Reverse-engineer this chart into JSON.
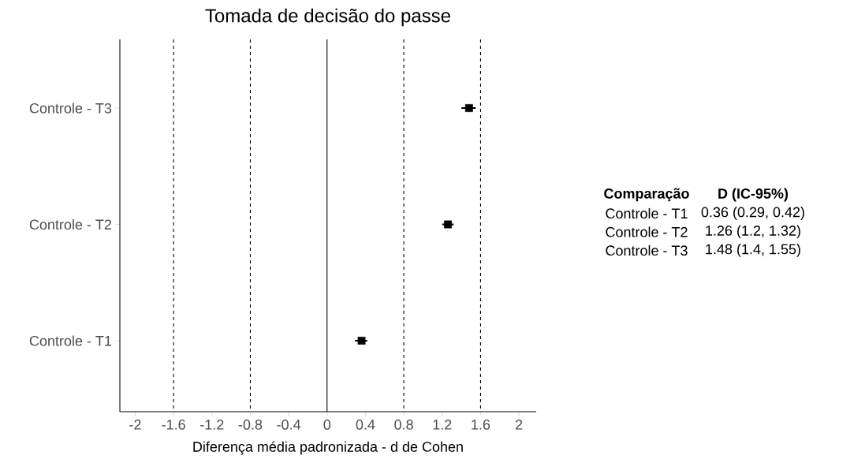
{
  "chart_data": {
    "type": "scatter",
    "orientation": "horizontal",
    "title": "Tomada de decisão do passe",
    "xlabel": "Diferença média padronizada - d de Cohen",
    "categories": [
      "Controle - T3",
      "Controle - T2",
      "Controle - T1"
    ],
    "values": [
      1.48,
      1.26,
      0.36
    ],
    "errors": [
      [
        1.4,
        1.55
      ],
      [
        1.2,
        1.32
      ],
      [
        0.29,
        0.42
      ]
    ],
    "color": "#000000",
    "marker": "square",
    "xlim": [
      -2.16,
      2.18
    ],
    "xticks": [
      -2,
      -1.6,
      -1.2,
      -0.8,
      -0.4,
      0,
      0.4,
      0.8,
      1.2,
      1.6,
      2
    ],
    "ref_lines": [
      {
        "axis": "x",
        "value": -1.6,
        "line_style": "dashed"
      },
      {
        "axis": "x",
        "value": -0.8,
        "line_style": "dashed"
      },
      {
        "axis": "x",
        "value": 0,
        "line_style": "solid"
      },
      {
        "axis": "x",
        "value": 0.8,
        "line_style": "dashed"
      },
      {
        "axis": "x",
        "value": 1.6,
        "line_style": "dashed"
      }
    ],
    "annotations": [
      "Comparação",
      "D (IC-95%)",
      "Controle - T1",
      "0.36 (0.29, 0.42)",
      "Controle - T2",
      "1.26 (1.2, 1.32)",
      "Controle - T3",
      "1.48 (1.4, 1.55)"
    ]
  }
}
